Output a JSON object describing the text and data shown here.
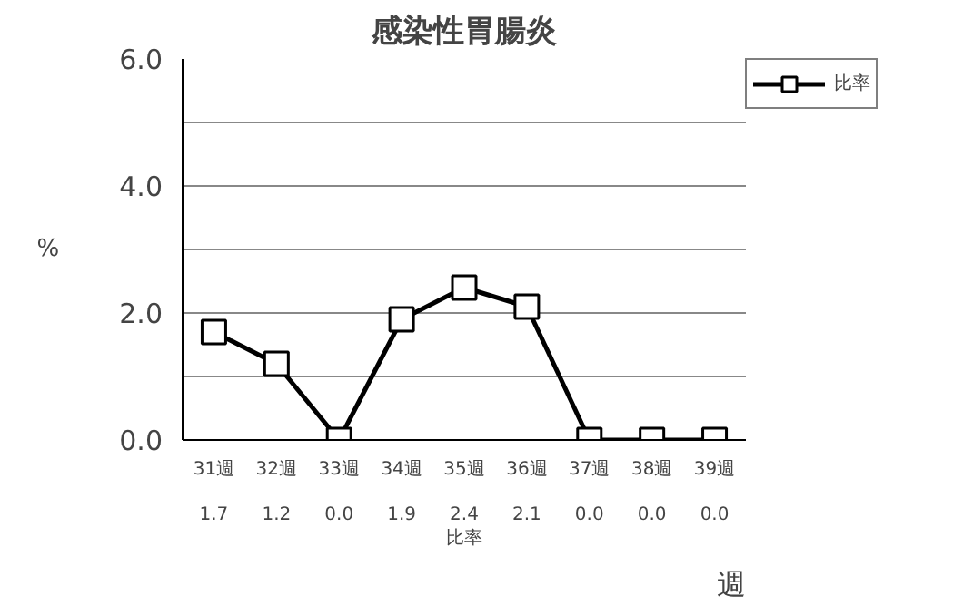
{
  "chart_data": {
    "type": "line",
    "title": "感染性胃腸炎",
    "ylabel": "%",
    "xlabel": "週",
    "categories": [
      "31週",
      "32週",
      "33週",
      "34週",
      "35週",
      "36週",
      "37週",
      "38週",
      "39週"
    ],
    "series": [
      {
        "name": "比率",
        "color": "#000000",
        "values": [
          1.7,
          1.2,
          0.0,
          1.9,
          2.4,
          2.1,
          0.0,
          0.0,
          0.0
        ],
        "value_labels": [
          "1.7",
          "1.2",
          "0.0",
          "1.9",
          "2.4",
          "2.1",
          "0.0",
          "0.0",
          "0.0"
        ]
      }
    ],
    "ylim": [
      0,
      6
    ],
    "yticks": [
      {
        "value": 0,
        "label": "0.0"
      },
      {
        "value": 1,
        "label": null
      },
      {
        "value": 2,
        "label": "2.0"
      },
      {
        "value": 3,
        "label": null
      },
      {
        "value": 4,
        "label": "4.0"
      },
      {
        "value": 5,
        "label": null
      },
      {
        "value": 6,
        "label": "6.0"
      }
    ],
    "grid": "y",
    "legend": "top right",
    "marker": "square",
    "line_style": "solid"
  }
}
